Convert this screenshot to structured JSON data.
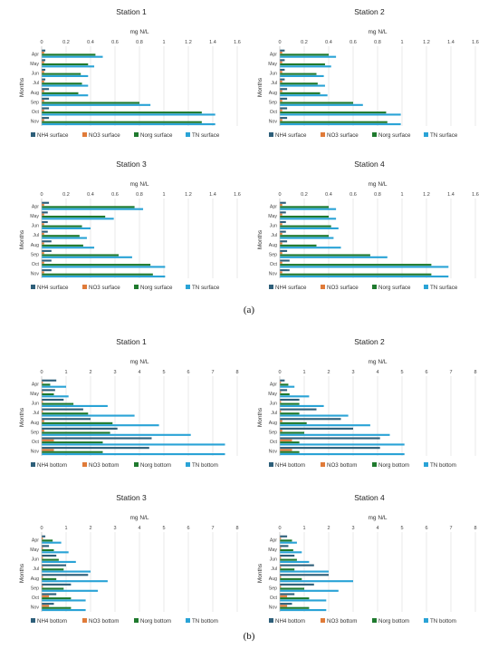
{
  "colors": {
    "nh4": "#2e5f7a",
    "no3": "#e07b39",
    "norg": "#1f7a2e",
    "tn": "#2aa3d6",
    "grid": "#d9d9d9"
  },
  "captions": {
    "a": "(a)",
    "b": "(b)"
  },
  "chart_data": [
    {
      "type": "bar",
      "title": "Station 1",
      "xlabel": "mg N/L",
      "ylabel": "Months",
      "xlim": [
        0,
        1.6
      ],
      "ticks": [
        "0",
        "0.2",
        "0.4",
        "0.6",
        "0.8",
        "1",
        "1.2",
        "1.4",
        "1.6"
      ],
      "categories": [
        "Apr",
        "May",
        "Jun",
        "Jul",
        "Aug",
        "Sep",
        "Oct",
        "Nov"
      ],
      "series": [
        {
          "name": "NH4 surface",
          "values": [
            0.03,
            0.03,
            0.03,
            0.03,
            0.06,
            0.06,
            0.06,
            0.06
          ]
        },
        {
          "name": "NO3 surface",
          "values": [
            0.02,
            0.02,
            0.02,
            0.02,
            0.02,
            0.02,
            0.02,
            0.02
          ]
        },
        {
          "name": "Norg surface",
          "values": [
            0.44,
            0.38,
            0.32,
            0.33,
            0.3,
            0.8,
            1.31,
            1.31
          ]
        },
        {
          "name": "TN surface",
          "values": [
            0.5,
            0.43,
            0.38,
            0.38,
            0.38,
            0.89,
            1.42,
            1.42
          ]
        }
      ],
      "legend": "bottom"
    },
    {
      "type": "bar",
      "title": "Station 2",
      "xlabel": "mg N/L",
      "ylabel": "Months",
      "xlim": [
        0,
        1.6
      ],
      "ticks": [
        "0",
        "0.2",
        "0.4",
        "0.6",
        "0.8",
        "1",
        "1.2",
        "1.4",
        "1.6"
      ],
      "categories": [
        "Apr",
        "May",
        "Jun",
        "Jul",
        "Aug",
        "Sep",
        "Oct",
        "Nov"
      ],
      "series": [
        {
          "name": "NH4 surface",
          "values": [
            0.04,
            0.04,
            0.04,
            0.04,
            0.06,
            0.06,
            0.06,
            0.06
          ]
        },
        {
          "name": "NO3 surface",
          "values": [
            0.02,
            0.02,
            0.02,
            0.02,
            0.02,
            0.02,
            0.02,
            0.02
          ]
        },
        {
          "name": "Norg surface",
          "values": [
            0.4,
            0.37,
            0.3,
            0.31,
            0.33,
            0.6,
            0.87,
            0.88
          ]
        },
        {
          "name": "TN surface",
          "values": [
            0.46,
            0.42,
            0.36,
            0.37,
            0.39,
            0.68,
            0.99,
            0.99
          ]
        }
      ],
      "legend": "bottom"
    },
    {
      "type": "bar",
      "title": "Station 3",
      "xlabel": "mg N/L",
      "ylabel": "Months",
      "xlim": [
        0,
        1.6
      ],
      "ticks": [
        "0",
        "0.2",
        "0.4",
        "0.6",
        "0.8",
        "1",
        "1.2",
        "1.4",
        "1.6"
      ],
      "categories": [
        "Apr",
        "May",
        "Jun",
        "Jul",
        "Aug",
        "Sep",
        "Oct",
        "Nov"
      ],
      "series": [
        {
          "name": "NH4 surface",
          "values": [
            0.06,
            0.05,
            0.05,
            0.05,
            0.08,
            0.08,
            0.08,
            0.08
          ]
        },
        {
          "name": "NO3 surface",
          "values": [
            0.02,
            0.02,
            0.02,
            0.02,
            0.02,
            0.02,
            0.02,
            0.02
          ]
        },
        {
          "name": "Norg surface",
          "values": [
            0.76,
            0.52,
            0.33,
            0.31,
            0.34,
            0.63,
            0.89,
            0.91
          ]
        },
        {
          "name": "TN surface",
          "values": [
            0.83,
            0.59,
            0.4,
            0.37,
            0.43,
            0.74,
            1.01,
            1.01
          ]
        }
      ],
      "legend": "bottom"
    },
    {
      "type": "bar",
      "title": "Station 4",
      "xlabel": "mg N/L",
      "ylabel": "Months",
      "xlim": [
        0,
        1.6
      ],
      "ticks": [
        "0",
        "0.2",
        "0.4",
        "0.6",
        "0.8",
        "1",
        "1.2",
        "1.4",
        "1.6"
      ],
      "categories": [
        "Apr",
        "May",
        "Jun",
        "Jul",
        "Aug",
        "Sep",
        "Oct",
        "Nov"
      ],
      "series": [
        {
          "name": "NH4 surface",
          "values": [
            0.05,
            0.05,
            0.05,
            0.05,
            0.06,
            0.06,
            0.08,
            0.08
          ]
        },
        {
          "name": "NO3 surface",
          "values": [
            0.02,
            0.02,
            0.02,
            0.02,
            0.02,
            0.02,
            0.02,
            0.02
          ]
        },
        {
          "name": "Norg surface",
          "values": [
            0.4,
            0.4,
            0.42,
            0.4,
            0.3,
            0.74,
            1.24,
            1.24
          ]
        },
        {
          "name": "TN surface",
          "values": [
            0.46,
            0.46,
            0.48,
            0.44,
            0.5,
            0.88,
            1.38,
            1.38
          ]
        }
      ],
      "legend": "bottom"
    },
    {
      "type": "bar",
      "title": "Station 1",
      "xlabel": "mg N/L",
      "ylabel": "Months",
      "xlim": [
        0,
        8
      ],
      "ticks": [
        "0",
        "1",
        "2",
        "3",
        "4",
        "5",
        "6",
        "7",
        "8"
      ],
      "categories": [
        "Apr",
        "May",
        "Jun",
        "Jul",
        "Aug",
        "Sep",
        "Oct",
        "Nov"
      ],
      "series": [
        {
          "name": "NH4 bottom",
          "values": [
            0.6,
            0.55,
            0.9,
            1.7,
            2.0,
            3.1,
            4.5,
            4.4
          ]
        },
        {
          "name": "NO3 bottom",
          "values": [
            0.05,
            0.05,
            0.05,
            0.05,
            0.1,
            0.1,
            0.5,
            0.5
          ]
        },
        {
          "name": "Norg bottom",
          "values": [
            0.35,
            0.5,
            1.3,
            1.9,
            2.9,
            2.8,
            2.5,
            2.5
          ]
        },
        {
          "name": "TN bottom",
          "values": [
            1.0,
            1.1,
            2.7,
            3.8,
            4.8,
            6.1,
            7.5,
            7.5
          ]
        }
      ],
      "legend": "bottom"
    },
    {
      "type": "bar",
      "title": "Station 2",
      "xlabel": "mg N/L",
      "ylabel": "Months",
      "xlim": [
        0,
        8
      ],
      "ticks": [
        "0",
        "1",
        "2",
        "3",
        "4",
        "5",
        "6",
        "7",
        "8"
      ],
      "categories": [
        "Apr",
        "May",
        "Jun",
        "Jul",
        "Aug",
        "Sep",
        "Oct",
        "Nov"
      ],
      "series": [
        {
          "name": "NH4 bottom",
          "values": [
            0.2,
            0.3,
            0.8,
            1.5,
            2.5,
            3.0,
            4.1,
            4.1
          ]
        },
        {
          "name": "NO3 bottom",
          "values": [
            0.05,
            0.05,
            0.05,
            0.05,
            0.1,
            0.1,
            0.5,
            0.5
          ]
        },
        {
          "name": "Norg bottom",
          "values": [
            0.35,
            0.4,
            0.8,
            0.8,
            1.1,
            1.0,
            0.8,
            0.8
          ]
        },
        {
          "name": "TN bottom",
          "values": [
            0.6,
            1.2,
            1.8,
            2.8,
            3.7,
            4.5,
            5.1,
            5.1
          ]
        }
      ],
      "legend": "bottom"
    },
    {
      "type": "bar",
      "title": "Station 3",
      "xlabel": "mg N/L",
      "ylabel": "Months",
      "xlim": [
        0,
        8
      ],
      "ticks": [
        "0",
        "1",
        "2",
        "3",
        "4",
        "5",
        "6",
        "7",
        "8"
      ],
      "categories": [
        "Apr",
        "May",
        "Jun",
        "Jul",
        "Aug",
        "Sep",
        "Oct",
        "Nov"
      ],
      "series": [
        {
          "name": "NH4 bottom",
          "values": [
            0.15,
            0.3,
            0.6,
            1.0,
            1.9,
            1.2,
            0.6,
            0.5
          ]
        },
        {
          "name": "NO3 bottom",
          "values": [
            0.05,
            0.05,
            0.05,
            0.05,
            0.05,
            0.05,
            0.3,
            0.3
          ]
        },
        {
          "name": "Norg bottom",
          "values": [
            0.45,
            0.5,
            0.7,
            0.9,
            0.6,
            0.9,
            1.2,
            1.2
          ]
        },
        {
          "name": "TN bottom",
          "values": [
            0.8,
            1.1,
            1.4,
            2.0,
            2.7,
            2.3,
            1.8,
            1.8
          ]
        }
      ],
      "legend": "bottom"
    },
    {
      "type": "bar",
      "title": "Station 4",
      "xlabel": "mg N/L",
      "ylabel": "Months",
      "xlim": [
        0,
        8
      ],
      "ticks": [
        "0",
        "1",
        "2",
        "3",
        "4",
        "5",
        "6",
        "7",
        "8"
      ],
      "categories": [
        "Apr",
        "May",
        "Jun",
        "Jul",
        "Aug",
        "Sep",
        "Oct",
        "Nov"
      ],
      "series": [
        {
          "name": "NH4 bottom",
          "values": [
            0.3,
            0.35,
            0.6,
            1.4,
            2.0,
            1.4,
            0.6,
            0.5
          ]
        },
        {
          "name": "NO3 bottom",
          "values": [
            0.05,
            0.05,
            0.05,
            0.05,
            0.05,
            0.05,
            0.3,
            0.3
          ]
        },
        {
          "name": "Norg bottom",
          "values": [
            0.5,
            0.55,
            0.7,
            0.6,
            0.9,
            1.0,
            1.2,
            1.2
          ]
        },
        {
          "name": "TN bottom",
          "values": [
            0.7,
            0.9,
            1.2,
            2.0,
            3.0,
            2.4,
            1.9,
            1.9
          ]
        }
      ],
      "legend": "bottom"
    }
  ]
}
